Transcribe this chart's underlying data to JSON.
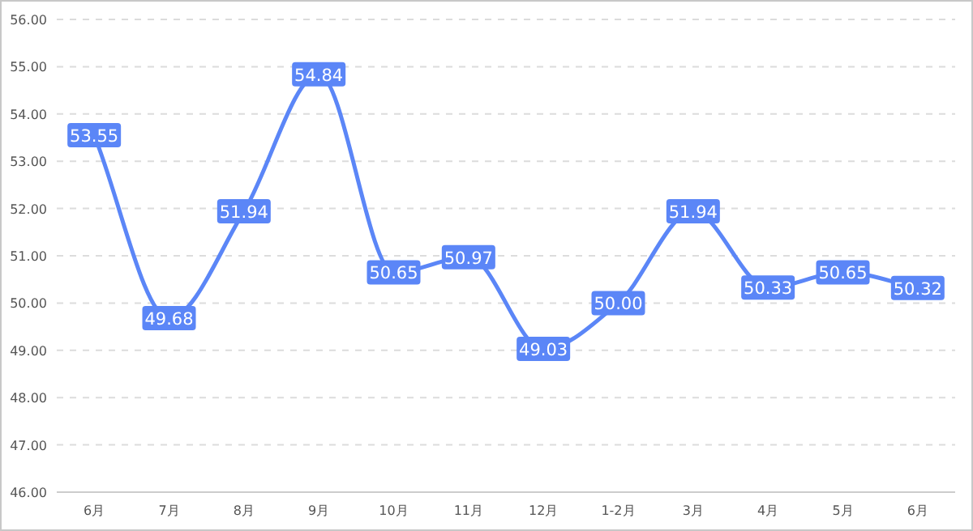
{
  "chart_data": {
    "type": "line",
    "categories": [
      "6月",
      "7月",
      "8月",
      "9月",
      "10月",
      "11月",
      "12月",
      "1-2月",
      "3月",
      "4月",
      "5月",
      "6月"
    ],
    "series": [
      {
        "color": "#5b86f7",
        "values": [
          53.55,
          49.68,
          51.94,
          54.84,
          50.65,
          50.97,
          49.03,
          50.0,
          51.94,
          50.33,
          50.65,
          50.32
        ],
        "value_labels": [
          "53.55",
          "49.68",
          "51.94",
          "54.84",
          "50.65",
          "50.97",
          "49.03",
          "50.00",
          "51.94",
          "50.33",
          "50.65",
          "50.32"
        ]
      }
    ],
    "ylim": [
      46,
      56
    ],
    "yticks": [
      {
        "value": 46,
        "label": "46.00"
      },
      {
        "value": 47,
        "label": "47.00"
      },
      {
        "value": 48,
        "label": "48.00"
      },
      {
        "value": 49,
        "label": "49.00"
      },
      {
        "value": 50,
        "label": "50.00"
      },
      {
        "value": 51,
        "label": "51.00"
      },
      {
        "value": 52,
        "label": "52.00"
      },
      {
        "value": 53,
        "label": "53.00"
      },
      {
        "value": 54,
        "label": "54.00"
      },
      {
        "value": 55,
        "label": "55.00"
      },
      {
        "value": 56,
        "label": "56.00"
      }
    ],
    "grid": "y",
    "line_style": "solid",
    "marker": "square"
  }
}
